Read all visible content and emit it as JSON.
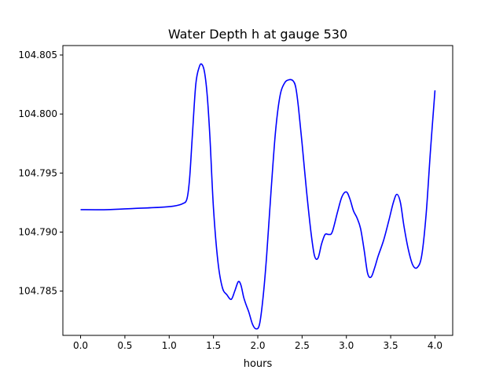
{
  "chart_data": {
    "type": "line",
    "title": "Water Depth h at gauge 530",
    "xlabel": "hours",
    "ylabel": "",
    "xlim": [
      -0.2,
      4.2
    ],
    "ylim": [
      104.78125,
      104.8058
    ],
    "xticks": [
      {
        "value": 0.0,
        "label": "0.0"
      },
      {
        "value": 0.5,
        "label": "0.5"
      },
      {
        "value": 1.0,
        "label": "1.0"
      },
      {
        "value": 1.5,
        "label": "1.5"
      },
      {
        "value": 2.0,
        "label": "2.0"
      },
      {
        "value": 2.5,
        "label": "2.5"
      },
      {
        "value": 3.0,
        "label": "3.0"
      },
      {
        "value": 3.5,
        "label": "3.5"
      },
      {
        "value": 4.0,
        "label": "4.0"
      }
    ],
    "yticks": [
      {
        "value": 104.785,
        "label": "104.785"
      },
      {
        "value": 104.79,
        "label": "104.790"
      },
      {
        "value": 104.795,
        "label": "104.795"
      },
      {
        "value": 104.8,
        "label": "104.800"
      },
      {
        "value": 104.805,
        "label": "104.805"
      }
    ],
    "grid": false,
    "legend": "none",
    "series": [
      {
        "color": "#0000ff",
        "x": [
          0.0,
          0.3,
          0.6,
          0.9,
          1.05,
          1.15,
          1.2,
          1.23,
          1.26,
          1.3,
          1.34,
          1.37,
          1.4,
          1.43,
          1.46,
          1.5,
          1.55,
          1.6,
          1.65,
          1.7,
          1.74,
          1.78,
          1.81,
          1.84,
          1.87,
          1.9,
          1.94,
          1.98,
          2.02,
          2.06,
          2.1,
          2.15,
          2.2,
          2.25,
          2.3,
          2.35,
          2.4,
          2.43,
          2.46,
          2.5,
          2.55,
          2.6,
          2.64,
          2.68,
          2.72,
          2.76,
          2.8,
          2.84,
          2.9,
          2.95,
          3.0,
          3.04,
          3.08,
          3.12,
          3.16,
          3.2,
          3.24,
          3.28,
          3.32,
          3.36,
          3.42,
          3.48,
          3.53,
          3.57,
          3.61,
          3.65,
          3.7,
          3.75,
          3.8,
          3.85,
          3.9,
          3.95,
          4.0
        ],
        "values": [
          104.7919,
          104.7919,
          104.792,
          104.7921,
          104.7922,
          104.7924,
          104.7928,
          104.7945,
          104.798,
          104.8025,
          104.804,
          104.8042,
          104.8035,
          104.8015,
          104.798,
          104.792,
          104.7875,
          104.7853,
          104.7847,
          104.7843,
          104.785,
          104.7858,
          104.7855,
          104.7845,
          104.7838,
          104.7832,
          104.7822,
          104.7818,
          104.7822,
          104.7845,
          104.788,
          104.7935,
          104.7985,
          104.8015,
          104.8026,
          104.8029,
          104.8028,
          104.8022,
          104.8005,
          104.7975,
          104.7935,
          104.79,
          104.788,
          104.7878,
          104.789,
          104.7898,
          104.7898,
          104.79,
          104.7917,
          104.793,
          104.7934,
          104.7928,
          104.7918,
          104.7912,
          104.7903,
          104.7885,
          104.7865,
          104.7862,
          104.787,
          104.788,
          104.7893,
          104.791,
          104.7925,
          104.7932,
          104.7925,
          104.7905,
          104.7885,
          104.7872,
          104.787,
          104.788,
          104.7915,
          104.797,
          104.802
        ]
      }
    ]
  }
}
